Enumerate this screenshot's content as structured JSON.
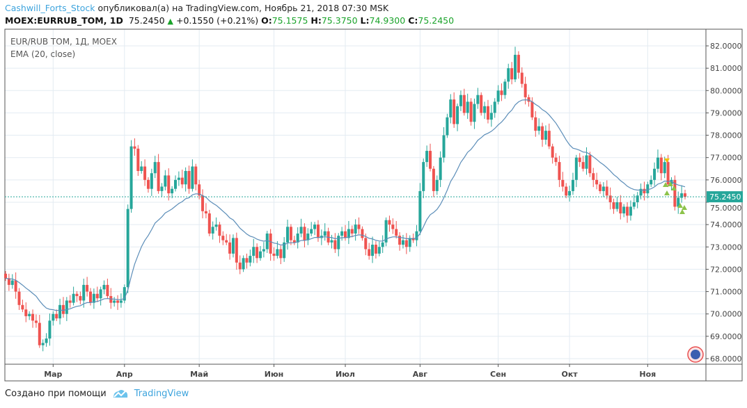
{
  "header": {
    "author": "Cashwill_Forts_Stock",
    "published_text": "опубликовал(а) на TradingView.com, Ноябрь 21, 2018 07:30 MSK",
    "symbol": "MOEX:EURRUB_TOM, 1D",
    "last": "75.2450",
    "change": "+0.1550 (+0.21%)",
    "o_label": "O:",
    "o": "75.1575",
    "h_label": "H:",
    "h": "75.3750",
    "l_label": "L:",
    "l": "74.9300",
    "c_label": "C:",
    "c": "75.2450"
  },
  "legend": {
    "title": "EUR/RUB TOM, 1Д, MOEX",
    "indicator": "EMA (20, close)"
  },
  "footer": {
    "created_with": "Создано при помощи",
    "brand": "TradingView"
  },
  "colors": {
    "up": "#26a69a",
    "down": "#ef5350",
    "ema": "#5b8db8",
    "grid": "#e3ebf2",
    "price_line": "#26a69a",
    "author": "#3ea4dd"
  },
  "chart_data": {
    "type": "candlestick",
    "title": "EUR/RUB TOM, 1Д, MOEX",
    "indicator": "EMA (20, close)",
    "ylim": [
      67.6,
      82.7
    ],
    "yticks": [
      "82.0000",
      "81.0000",
      "80.0000",
      "79.0000",
      "78.0000",
      "77.0000",
      "76.0000",
      "75.0000",
      "74.0000",
      "73.0000",
      "72.0000",
      "71.0000",
      "70.0000",
      "69.0000",
      "68.0000"
    ],
    "current_price": "75.2450",
    "months": [
      {
        "label": "Мар",
        "bar": 14
      },
      {
        "label": "Апр",
        "bar": 35
      },
      {
        "label": "Май",
        "bar": 57
      },
      {
        "label": "Июн",
        "bar": 79
      },
      {
        "label": "Июл",
        "bar": 100
      },
      {
        "label": "Авг",
        "bar": 122
      },
      {
        "label": "Сен",
        "bar": 145
      },
      {
        "label": "Окт",
        "bar": 166
      },
      {
        "label": "Ноя",
        "bar": 189
      }
    ],
    "close": [
      71.6,
      71.3,
      71.5,
      71.0,
      70.4,
      70.2,
      69.9,
      70.0,
      69.7,
      69.6,
      68.6,
      68.7,
      68.9,
      69.7,
      70.0,
      69.8,
      70.4,
      70.0,
      70.6,
      70.5,
      70.9,
      70.8,
      70.6,
      71.3,
      71.0,
      70.5,
      70.9,
      70.7,
      71.1,
      71.3,
      70.8,
      70.5,
      70.6,
      70.5,
      70.6,
      71.2,
      74.7,
      77.5,
      77.4,
      76.4,
      76.6,
      76.0,
      75.6,
      76.3,
      76.8,
      75.5,
      75.7,
      76.2,
      75.4,
      75.6,
      76.0,
      76.1,
      75.8,
      76.4,
      75.6,
      76.6,
      75.8,
      75.3,
      74.6,
      74.5,
      73.6,
      73.9,
      74.0,
      73.5,
      73.3,
      73.2,
      72.7,
      73.4,
      72.3,
      72.0,
      72.5,
      72.3,
      72.6,
      73.0,
      72.5,
      72.8,
      72.9,
      73.6,
      72.7,
      72.6,
      72.9,
      72.5,
      73.2,
      73.9,
      73.3,
      73.2,
      73.6,
      73.9,
      73.3,
      73.6,
      73.8,
      74.0,
      73.4,
      73.5,
      73.7,
      73.2,
      73.3,
      72.9,
      73.5,
      73.7,
      73.4,
      73.8,
      73.6,
      74.0,
      73.8,
      73.4,
      72.9,
      72.6,
      73.1,
      72.7,
      73.0,
      73.2,
      74.2,
      74.0,
      73.8,
      73.5,
      73.1,
      73.3,
      73.0,
      73.4,
      73.3,
      73.7,
      75.5,
      76.8,
      77.3,
      76.5,
      75.5,
      76.0,
      77.0,
      78.0,
      78.8,
      79.6,
      78.5,
      79.3,
      79.8,
      79.0,
      79.5,
      78.6,
      79.4,
      79.8,
      79.0,
      79.3,
      78.7,
      79.0,
      79.5,
      80.0,
      79.8,
      80.4,
      81.0,
      80.5,
      81.6,
      80.8,
      80.3,
      79.7,
      79.5,
      78.8,
      78.2,
      78.4,
      77.8,
      78.2,
      77.5,
      77.0,
      76.8,
      76.0,
      75.7,
      75.3,
      75.5,
      76.0,
      77.0,
      76.8,
      76.5,
      77.1,
      76.3,
      76.0,
      75.8,
      75.5,
      75.7,
      75.3,
      75.0,
      74.7,
      75.0,
      74.5,
      74.8,
      74.4,
      74.8,
      75.0,
      75.3,
      75.6,
      75.4,
      75.8,
      76.0,
      76.5,
      77.0,
      76.3,
      76.8,
      75.8,
      76.0,
      74.8,
      75.2,
      75.4,
      75.245
    ],
    "ema_period": 20
  }
}
